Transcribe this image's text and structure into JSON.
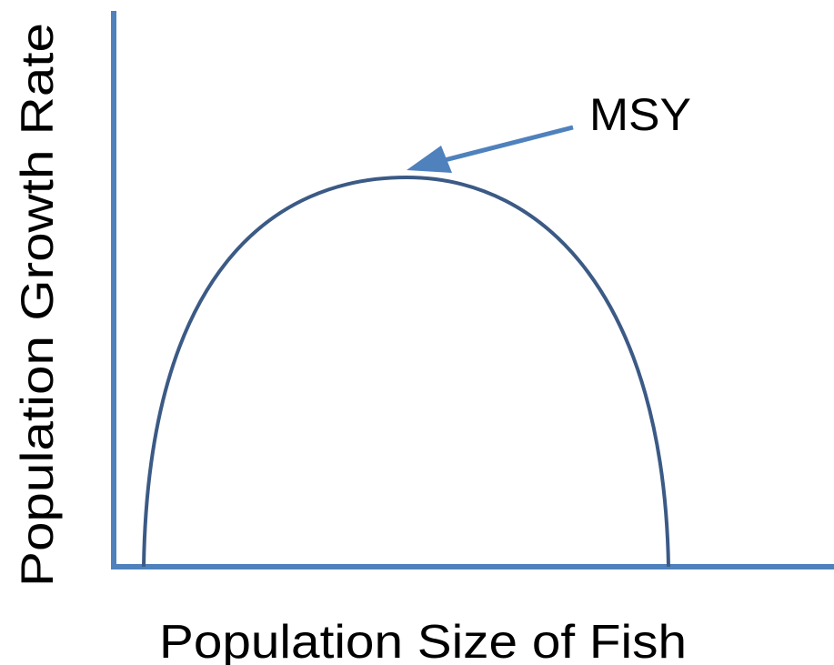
{
  "diagram": {
    "y_axis_label": "Population Growth Rate",
    "x_axis_label": "Population Size of Fish",
    "annotation": "MSY"
  }
}
